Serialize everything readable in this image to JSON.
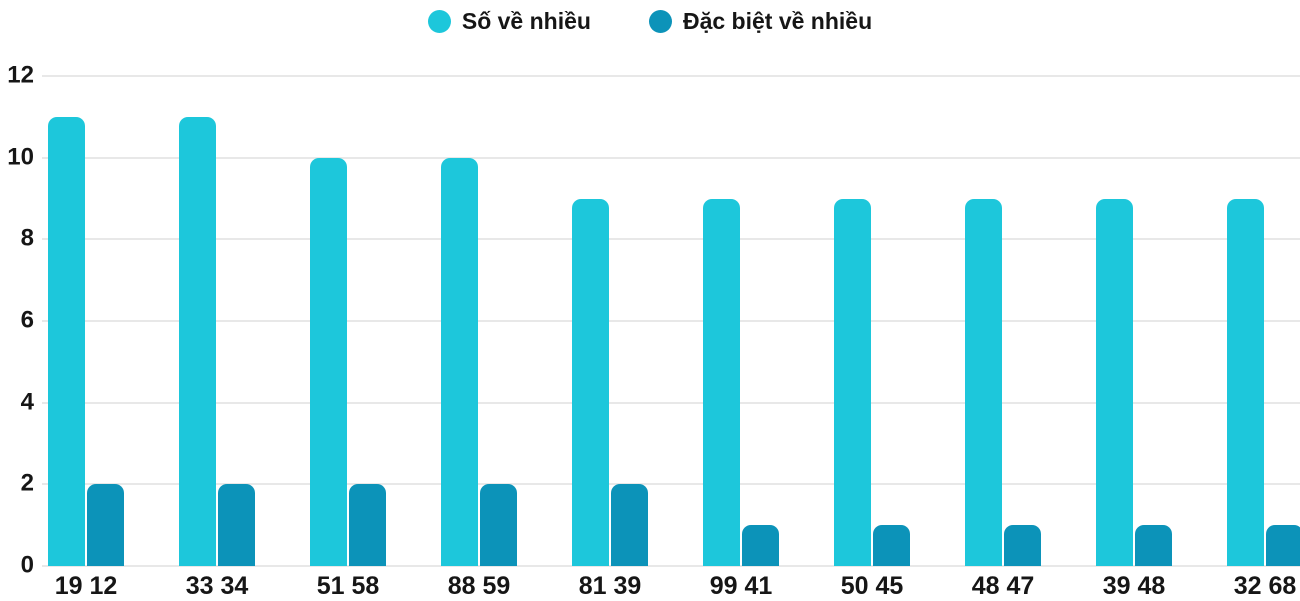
{
  "chart_data": {
    "type": "bar",
    "title": "",
    "xlabel": "",
    "ylabel": "",
    "categories": [
      "19 12",
      "33 34",
      "51 58",
      "88 59",
      "81 39",
      "99 41",
      "50 45",
      "48 47",
      "39 48",
      "32 68"
    ],
    "series": [
      {
        "name": "Số về nhiều",
        "color": "#1DC7DB",
        "values": [
          11,
          11,
          10,
          10,
          9,
          9,
          9,
          9,
          9,
          9
        ]
      },
      {
        "name": "Đặc biệt về nhiều",
        "color": "#0C93B9",
        "values": [
          2,
          2,
          2,
          2,
          2,
          1,
          1,
          1,
          1,
          1
        ]
      }
    ],
    "ylim": [
      0,
      12
    ],
    "yticks": [
      0,
      2,
      4,
      6,
      8,
      10,
      12
    ],
    "grid": true,
    "legend_position": "top-center"
  },
  "colors": {
    "gridline": "#E8E8E8",
    "axis_text": "#161616",
    "background": "#FFFFFF"
  }
}
